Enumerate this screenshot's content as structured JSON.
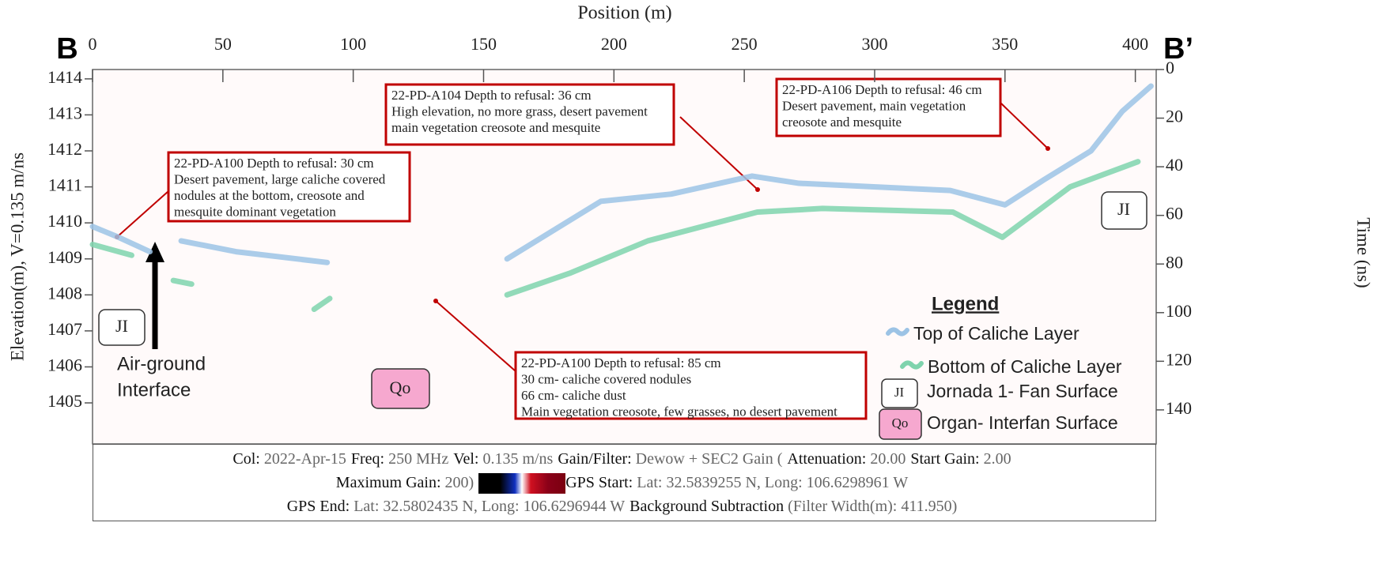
{
  "chart_data": {
    "type": "radargram",
    "xlabel": "Position (m)",
    "ylabel": "Elevation(m), V=0.135 m/ns",
    "y2label": "Time (ns)",
    "end_labels": [
      "B",
      "B’"
    ],
    "xlim": [
      0,
      408
    ],
    "xticks": [
      0,
      50,
      100,
      150,
      200,
      250,
      300,
      350,
      400
    ],
    "ylim": [
      1403.86,
      1414.26
    ],
    "yticks": [
      1414,
      1413,
      1412,
      1411,
      1410,
      1409,
      1408,
      1407,
      1406,
      1405
    ],
    "y2lim": [
      154,
      0
    ],
    "y2ticks": [
      0,
      20,
      40,
      60,
      80,
      100,
      120,
      140
    ],
    "series": [
      {
        "name": "Top of Caliche Layer",
        "color": "#9cc3e5",
        "x": [
          0,
          10,
          22,
          30,
          34,
          55,
          90,
          120,
          159,
          177,
          195,
          222,
          253,
          271,
          329,
          350,
          365,
          383,
          395,
          406
        ],
        "values": [
          1409.9,
          1409.6,
          1409.2,
          null,
          1409.5,
          1409.2,
          1408.9,
          null,
          1409.0,
          1409.8,
          1410.6,
          1410.8,
          1411.3,
          1411.1,
          1410.9,
          1410.5,
          1411.2,
          1412.0,
          1413.1,
          1413.8
        ]
      },
      {
        "name": "Bottom of Caliche Layer",
        "color": "#7fd3ad",
        "x": [
          0,
          15,
          25,
          31,
          38,
          70,
          85,
          91,
          120,
          159,
          183,
          213,
          255,
          280,
          330,
          349,
          375,
          401
        ],
        "values": [
          1409.4,
          1409.1,
          null,
          1408.4,
          1408.3,
          null,
          1407.6,
          1407.9,
          null,
          1408.0,
          1408.6,
          1409.5,
          1410.3,
          1410.4,
          1410.3,
          1409.6,
          1411.0,
          1411.7
        ]
      }
    ],
    "legend_title": "Legend",
    "legend_extra": [
      {
        "symbol": "JI",
        "label": "Jornada 1- Fan Surface"
      },
      {
        "symbol": "Qo",
        "label": "Organ- Interfan Surface"
      }
    ]
  },
  "annotations": [
    {
      "lines": [
        "22-PD-A100 Depth to refusal: 30 cm",
        "Desert pavement, large caliche covered",
        "nodules at the bottom, creosote and",
        "mesquite dominant vegetation"
      ]
    },
    {
      "lines": [
        "22-PD-A104 Depth to refusal: 36 cm",
        "High elevation, no more grass, desert pavement",
        "main vegetation creosote and mesquite"
      ]
    },
    {
      "lines": [
        "22-PD-A106 Depth to refusal: 46 cm",
        "Desert pavement, main vegetation",
        "creosote and mesquite"
      ]
    },
    {
      "lines": [
        "22-PD-A100 Depth to refusal: 85 cm",
        "30 cm- caliche covered nodules",
        "66 cm- caliche dust",
        "Main vegetation creosote, few grasses, no desert pavement"
      ]
    }
  ],
  "surface_labels": [
    "JI",
    "JI",
    "Qo"
  ],
  "arrow_label": [
    "Air-ground",
    "Interface"
  ],
  "footer": [
    [
      {
        "key": "Col:",
        "value": "2022-Apr-15"
      },
      {
        "key": "Freq:",
        "value": "250 MHz"
      },
      {
        "key": "Vel:",
        "value": "0.135 m/ns"
      },
      {
        "key": "Gain/Filter:",
        "value": "Dewow + SEC2 Gain ("
      },
      {
        "key": "Attenuation:",
        "value": "20.00"
      },
      {
        "key": "Start Gain:",
        "value": "2.00"
      }
    ],
    [
      {
        "key": "Maximum Gain:",
        "value": "200)"
      },
      {
        "key": "GPS Start:",
        "value": "Lat: 32.5839255 N, Long: 106.6298961 W"
      }
    ],
    [
      {
        "key": "GPS End:",
        "value": "Lat: 32.5802435 N, Long: 106.6296944 W"
      },
      {
        "key": "Background Subtraction",
        "value": "(Filter Width(m): 411.950)"
      }
    ]
  ]
}
